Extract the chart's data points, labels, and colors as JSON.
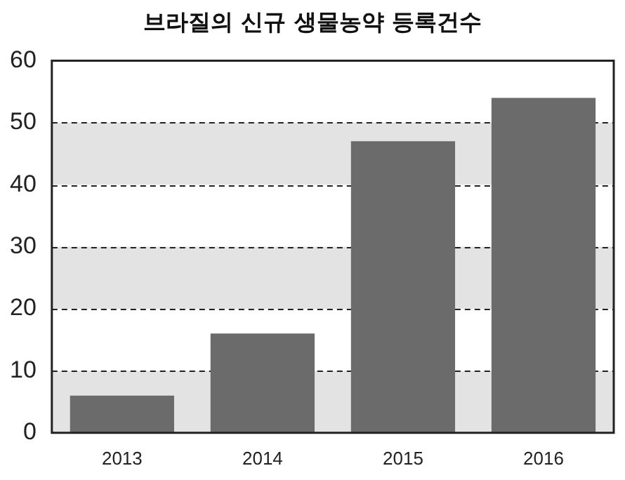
{
  "chart_data": {
    "type": "bar",
    "title": "브라질의 신규 생물농약 등록건수",
    "categories": [
      "2013",
      "2014",
      "2015",
      "2016"
    ],
    "values": [
      6,
      16,
      47,
      54
    ],
    "color": "#6b6b6b",
    "ylim": [
      0,
      60
    ],
    "yticks": [
      0,
      10,
      20,
      30,
      40,
      50,
      60
    ],
    "grid": "y",
    "line_style": "dashed",
    "bands": [
      {
        "axis": "y",
        "from": 0,
        "to": 10,
        "color": "#e3e3e3"
      },
      {
        "axis": "y",
        "from": 20,
        "to": 30,
        "color": "#e3e3e3"
      },
      {
        "axis": "y",
        "from": 40,
        "to": 50,
        "color": "#e3e3e3"
      }
    ],
    "legend": false
  }
}
